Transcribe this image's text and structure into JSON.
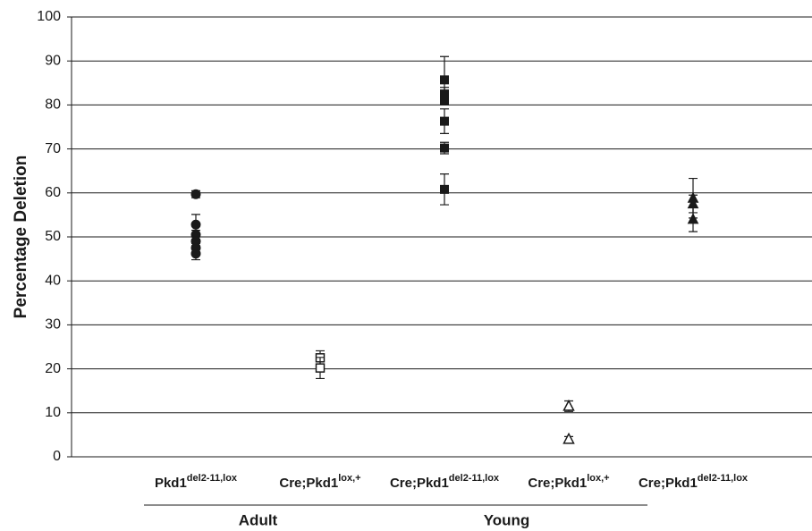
{
  "chart_data": {
    "type": "dot",
    "y_label": "Percentage Deletion",
    "categories": [
      {
        "base": "Pkd1",
        "sup": "del2-11,lox"
      },
      {
        "base": "Cre;Pkd1",
        "sup": "lox,+"
      },
      {
        "base": "Cre;Pkd1",
        "sup": "del2-11,lox"
      },
      {
        "base": "Cre;Pkd1",
        "sup": "lox,+"
      },
      {
        "base": "Cre;Pkd1",
        "sup": "del2-11,lox"
      }
    ],
    "markers": [
      "circle",
      "square-open",
      "square",
      "triangle-open",
      "triangle"
    ],
    "values": [
      [
        59.7,
        52.8,
        50.5,
        49,
        47.5,
        46.2
      ],
      [
        22.5,
        20.2
      ],
      [
        85.7,
        82.5,
        81,
        76.3,
        70.2,
        60.8
      ],
      [
        11.5,
        4
      ],
      [
        58.8,
        57.5,
        54
      ]
    ],
    "errors": [
      [
        0.8,
        2.3,
        1,
        1,
        1,
        1.4
      ],
      [
        1.6,
        2.4
      ],
      [
        5.3,
        1.5,
        1,
        2.8,
        1.3,
        3.5
      ],
      [
        1.2,
        0.6
      ],
      [
        4.5,
        2,
        2.8
      ]
    ],
    "groups": [
      "Adult",
      "Young"
    ],
    "color": "#1a1a1a",
    "ylim": [
      0,
      100
    ],
    "yticks": [
      0,
      10,
      20,
      30,
      40,
      50,
      60,
      70,
      80,
      90,
      100
    ],
    "grid": true
  }
}
